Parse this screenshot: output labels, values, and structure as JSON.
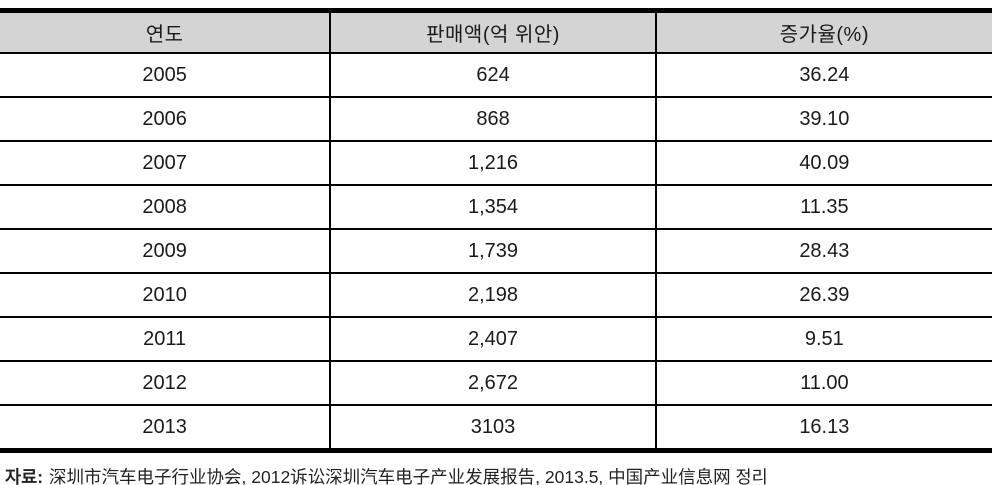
{
  "chart_data": {
    "type": "table",
    "columns": [
      "연도",
      "판매액(억 위안)",
      "증가율(%)"
    ],
    "rows": [
      [
        "2005",
        "624",
        "36.24"
      ],
      [
        "2006",
        "868",
        "39.10"
      ],
      [
        "2007",
        "1,216",
        "40.09"
      ],
      [
        "2008",
        "1,354",
        "11.35"
      ],
      [
        "2009",
        "1,739",
        "28.43"
      ],
      [
        "2010",
        "2,198",
        "26.39"
      ],
      [
        "2011",
        "2,407",
        "9.51"
      ],
      [
        "2012",
        "2,672",
        "11.00"
      ],
      [
        "2013",
        "3103",
        "16.13"
      ]
    ]
  },
  "footer": {
    "source_label": "자료:",
    "source_text": "深圳市汽车电子行业协会, 2012诉讼深圳汽车电子产业发展报告, 2013.5, 中国产业信息网 정리"
  },
  "colors": {
    "header_bg": "#d4d4d4",
    "border": "#000000",
    "text": "#1a1a1a"
  }
}
